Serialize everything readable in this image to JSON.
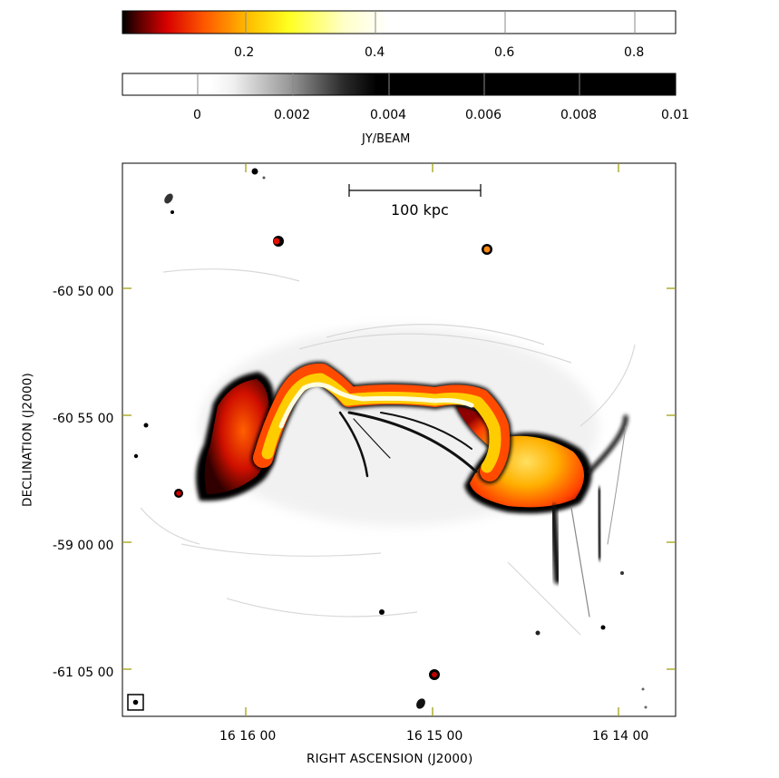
{
  "colorbar_heat": {
    "ticks": [
      "0.2",
      "0.4",
      "0.6",
      "0.8"
    ]
  },
  "colorbar_gray": {
    "ticks": [
      "0",
      "0.002",
      "0.004",
      "0.006",
      "0.008",
      "0.01"
    ],
    "unit": "JY/BEAM"
  },
  "image": {
    "scale_bar_label": "100 kpc",
    "y_axis_title": "DECLINATION (J2000)",
    "x_axis_title": "RIGHT ASCENSION (J2000)",
    "y_ticks": [
      "-60 50 00",
      "-60 55 00",
      "-59 00 00",
      "-61 05 00"
    ],
    "x_ticks": [
      "16 16 00",
      "16 15 00",
      "16 14 00"
    ],
    "tick_color": "#9a9a00"
  }
}
